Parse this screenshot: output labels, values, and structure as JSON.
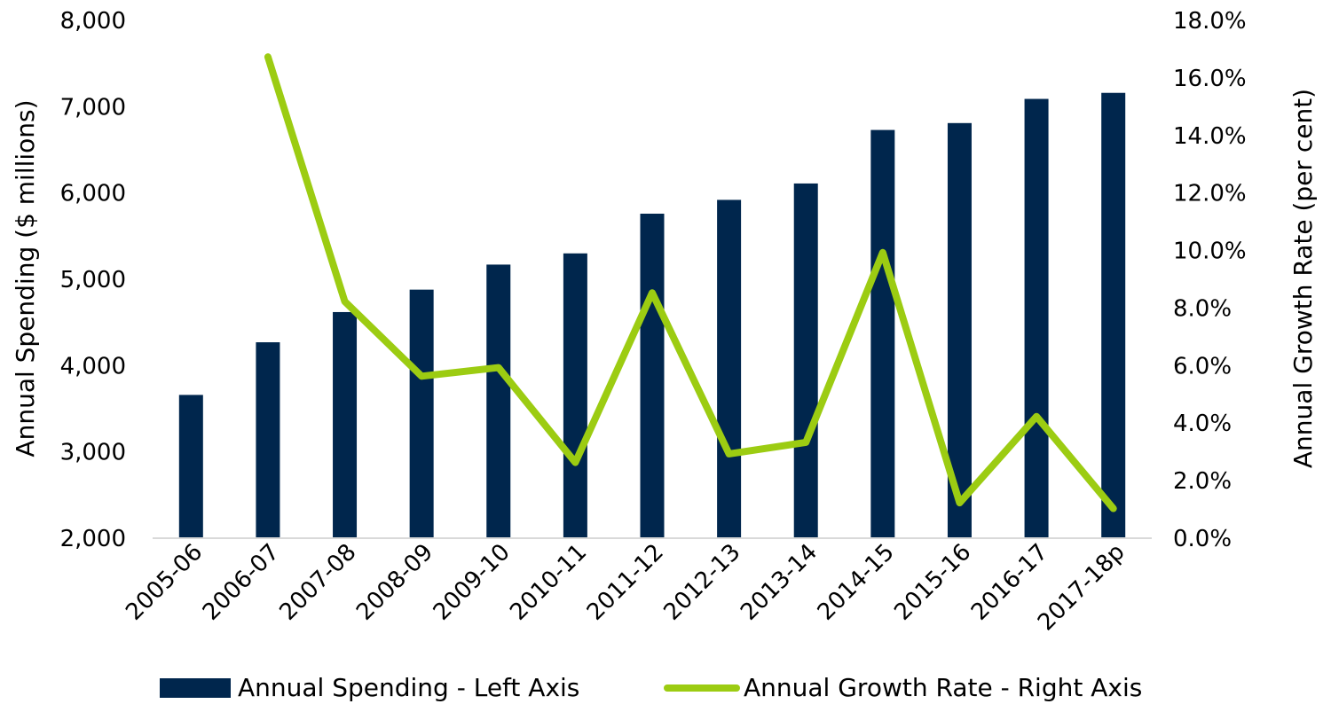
{
  "chart_data": {
    "type": "bar",
    "categories": [
      "2005-06",
      "2006-07",
      "2007-08",
      "2008-09",
      "2009-10",
      "2010-11",
      "2011-12",
      "2012-13",
      "2013-14",
      "2014-15",
      "2015-16",
      "2016-17",
      "2017-18p"
    ],
    "series": [
      {
        "name": "Annual Spending - Left Axis",
        "type": "bar",
        "axis": "left",
        "values": [
          3650,
          4260,
          4610,
          4870,
          5160,
          5290,
          5750,
          5910,
          6100,
          6720,
          6800,
          7080,
          7150
        ]
      },
      {
        "name": "Annual Growth Rate - Right Axis",
        "type": "line",
        "axis": "right",
        "values": [
          null,
          16.7,
          8.2,
          5.6,
          5.9,
          2.6,
          8.5,
          2.9,
          3.3,
          9.9,
          1.2,
          4.2,
          1.0
        ]
      }
    ],
    "ylabel_left": "Annual Spending ($ millions)",
    "ylabel_right": "Annual Growth Rate (per cent)",
    "ylim_left": [
      2000,
      8000
    ],
    "ylim_right": [
      0,
      18
    ],
    "yticks_left": [
      "2,000",
      "3,000",
      "4,000",
      "5,000",
      "6,000",
      "7,000",
      "8,000"
    ],
    "yticks_right": [
      "0.0%",
      "2.0%",
      "4.0%",
      "6.0%",
      "8.0%",
      "10.0%",
      "12.0%",
      "14.0%",
      "16.0%",
      "18.0%"
    ],
    "grid": false,
    "legend_position": "bottom",
    "colors": {
      "bars": "#00264d",
      "line": "#9ccc12",
      "axis": "#d9d9d9"
    }
  }
}
